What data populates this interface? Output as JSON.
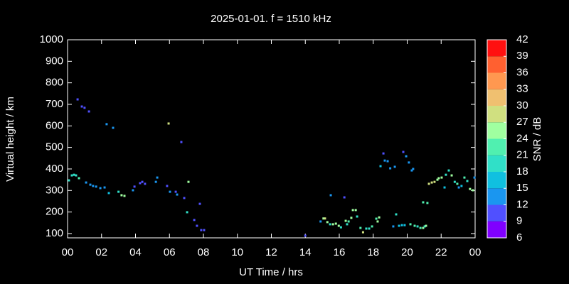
{
  "chart_data": {
    "type": "scatter",
    "title": "2025-01-01. f = 1510 kHz",
    "xlabel": "UT Time / hrs",
    "ylabel": "Virtual height / km",
    "colorbar_label": "SNR / dB",
    "xlim": [
      0,
      24
    ],
    "xticks": [
      {
        "value": 0,
        "label": "00"
      },
      {
        "value": 2,
        "label": "02"
      },
      {
        "value": 4,
        "label": "04"
      },
      {
        "value": 6,
        "label": "06"
      },
      {
        "value": 8,
        "label": "08"
      },
      10,
      12,
      14,
      16,
      18,
      20,
      22,
      {
        "value": 24,
        "label": "00"
      }
    ],
    "ylim": [
      80,
      1000
    ],
    "yticks": [
      100,
      200,
      300,
      400,
      500,
      600,
      700,
      800,
      900,
      1000
    ],
    "clim": [
      6,
      42
    ],
    "cticks": [
      6,
      9,
      12,
      15,
      18,
      21,
      24,
      27,
      30,
      33,
      36,
      39,
      42
    ],
    "colorscale": [
      "#8000ff",
      "#5050ff",
      "#1a96f0",
      "#10c0e0",
      "#30e0c8",
      "#50f0b0",
      "#a0ffa0",
      "#d0e080",
      "#f0c070",
      "#ff9850",
      "#ff6030",
      "#ff1010"
    ],
    "x": [
      0.08,
      0.25,
      0.38,
      0.5,
      0.67,
      0.59,
      0.84,
      1.0,
      1.26,
      1.09,
      1.34,
      1.5,
      1.68,
      1.93,
      2.18,
      2.3,
      2.43,
      2.68,
      3.0,
      3.18,
      3.35,
      3.85,
      3.94,
      4.27,
      4.4,
      4.56,
      5.2,
      5.28,
      5.86,
      5.95,
      6.03,
      6.37,
      6.45,
      6.7,
      6.87,
      7.12,
      7.04,
      7.46,
      7.62,
      7.87,
      8.04,
      7.79,
      14.0,
      14.9,
      15.07,
      15.16,
      15.3,
      15.46,
      15.63,
      15.8,
      15.97,
      15.5,
      16.1,
      16.3,
      16.38,
      16.46,
      16.55,
      16.71,
      16.8,
      16.97,
      17.05,
      17.25,
      17.4,
      17.59,
      17.76,
      17.93,
      18.18,
      18.26,
      18.35,
      18.43,
      18.6,
      18.68,
      18.85,
      19.0,
      19.18,
      19.35,
      19.27,
      19.52,
      19.69,
      19.77,
      19.85,
      19.94,
      20.1,
      20.27,
      20.35,
      20.19,
      20.44,
      20.61,
      20.78,
      20.94,
      21.03,
      21.11,
      20.94,
      21.19,
      21.28,
      21.45,
      21.61,
      21.78,
      21.86,
      22.03,
      22.2,
      22.28,
      22.45,
      22.62,
      22.8,
      22.95,
      23.04,
      23.2,
      23.37,
      23.54,
      23.7,
      23.87,
      23.96
    ],
    "values": [
      347,
      370,
      373,
      370,
      357,
      723,
      690,
      684,
      667,
      337,
      327,
      321,
      318,
      311,
      314,
      608,
      288,
      591,
      294,
      278,
      275,
      301,
      318,
      334,
      340,
      331,
      340,
      360,
      321,
      611,
      294,
      294,
      281,
      525,
      265,
      340,
      199,
      163,
      136,
      116,
      116,
      238,
      90,
      156,
      170,
      170,
      153,
      143,
      143,
      146,
      136,
      278,
      129,
      268,
      159,
      143,
      156,
      173,
      209,
      209,
      179,
      126,
      106,
      123,
      123,
      133,
      169,
      156,
      175,
      413,
      472,
      439,
      436,
      403,
      133,
      189,
      410,
      136,
      139,
      479,
      139,
      459,
      430,
      393,
      400,
      143,
      136,
      133,
      126,
      126,
      133,
      136,
      245,
      242,
      331,
      337,
      340,
      350,
      357,
      360,
      314,
      373,
      393,
      370,
      340,
      331,
      314,
      321,
      360,
      344,
      307,
      301,
      360
    ],
    "snr": [
      20,
      18,
      19,
      20,
      22,
      10,
      11,
      11,
      10,
      12,
      13,
      13,
      14,
      13,
      14,
      12,
      17,
      12,
      20,
      24,
      24,
      12,
      11,
      10,
      10,
      11,
      13,
      12,
      11,
      28,
      12,
      11,
      12,
      11,
      11,
      26,
      20,
      11,
      11,
      11,
      10,
      11,
      10,
      13,
      26,
      27,
      25,
      20,
      24,
      26,
      24,
      12,
      20,
      11,
      26,
      20,
      22,
      24,
      24,
      25,
      20,
      22,
      27,
      20,
      20,
      21,
      22,
      25,
      24,
      16,
      10,
      12,
      13,
      13,
      13,
      18,
      13,
      15,
      15,
      11,
      16,
      12,
      14,
      14,
      14,
      21,
      22,
      20,
      22,
      24,
      20,
      24,
      22,
      22,
      27,
      27,
      27,
      25,
      24,
      25,
      16,
      20,
      20,
      24,
      20,
      21,
      13,
      15,
      22,
      18,
      24,
      26,
      13
    ]
  }
}
